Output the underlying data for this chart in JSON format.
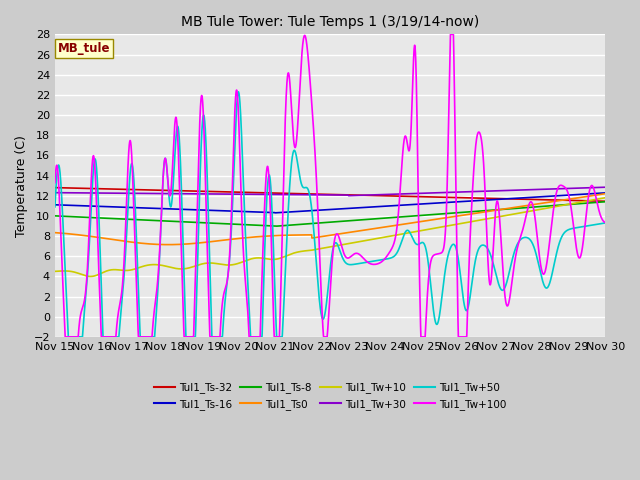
{
  "title": "MB Tule Tower: Tule Temps 1 (3/19/14-now)",
  "ylabel": "Temperature (C)",
  "ylim": [
    -2,
    28
  ],
  "yticks": [
    -2,
    0,
    2,
    4,
    6,
    8,
    10,
    12,
    14,
    16,
    18,
    20,
    22,
    24,
    26,
    28
  ],
  "watermark": "MB_tule",
  "series": [
    {
      "label": "Tul1_Ts-32",
      "color": "#cc0000",
      "lw": 1.2
    },
    {
      "label": "Tul1_Ts-16",
      "color": "#0000cc",
      "lw": 1.2
    },
    {
      "label": "Tul1_Ts-8",
      "color": "#00aa00",
      "lw": 1.2
    },
    {
      "label": "Tul1_Ts0",
      "color": "#ff8800",
      "lw": 1.2
    },
    {
      "label": "Tul1_Tw+10",
      "color": "#cccc00",
      "lw": 1.2
    },
    {
      "label": "Tul1_Tw+30",
      "color": "#8800cc",
      "lw": 1.2
    },
    {
      "label": "Tul1_Tw+50",
      "color": "#00cccc",
      "lw": 1.2
    },
    {
      "label": "Tul1_Tw+100",
      "color": "#ff00ff",
      "lw": 1.2
    }
  ],
  "xtick_labels": [
    "Nov 15",
    "Nov 16",
    "Nov 17",
    "Nov 18",
    "Nov 19",
    "Nov 20",
    "Nov 21",
    "Nov 22",
    "Nov 23",
    "Nov 24",
    "Nov 25",
    "Nov 26",
    "Nov 27",
    "Nov 28",
    "Nov 29",
    "Nov 30"
  ],
  "xtick_positions": [
    15,
    16,
    17,
    18,
    19,
    20,
    21,
    22,
    23,
    24,
    25,
    26,
    27,
    28,
    29,
    30
  ]
}
